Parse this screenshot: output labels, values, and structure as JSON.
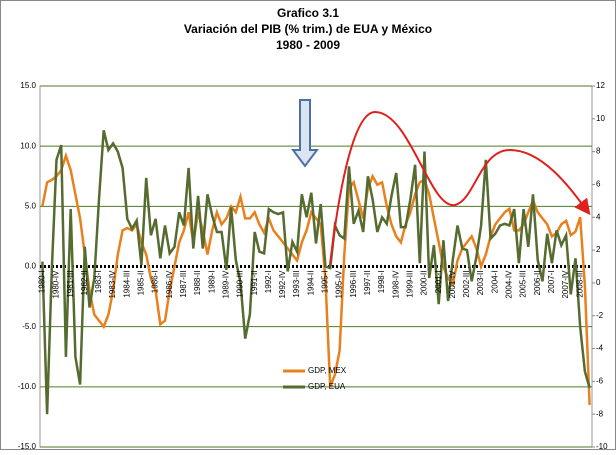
{
  "chart_data": {
    "type": "line",
    "title": [
      "Grafico 3.1",
      "Variación del PIB (% trim.) de EUA y México",
      "1980 - 2009"
    ],
    "categories": [
      "1980-I",
      null,
      null,
      "1980-IV",
      null,
      null,
      "1981-III",
      null,
      null,
      "1982-II",
      null,
      null,
      "1983-I",
      null,
      null,
      "1983-IV",
      null,
      null,
      "1984-III",
      null,
      null,
      "1985-II",
      null,
      null,
      "1986-I",
      null,
      null,
      "1986-IV",
      null,
      null,
      "1987-III",
      null,
      null,
      "1988-II",
      null,
      null,
      "1989-I",
      null,
      null,
      "1989-IV",
      null,
      null,
      "1990-III",
      null,
      null,
      "1991-II",
      null,
      null,
      "1992-I",
      null,
      null,
      "1992-IV",
      null,
      null,
      "1993-III",
      null,
      null,
      "1994-II",
      null,
      null,
      "1995-I",
      null,
      null,
      "1995-IV",
      null,
      null,
      "1996-III",
      null,
      null,
      "1997-II",
      null,
      null,
      "1998-I",
      null,
      null,
      "1998-IV",
      null,
      null,
      "1999-III",
      null,
      null,
      "2000-II",
      null,
      null,
      "2001-I",
      null,
      null,
      "2001-IV",
      null,
      null,
      "2002-III",
      null,
      null,
      "2003-II",
      null,
      null,
      "2004-I",
      null,
      null,
      "2004-IV",
      null,
      null,
      "2005-III",
      null,
      null,
      "2006-II",
      null,
      null,
      "2007-I",
      null,
      null,
      "2007-IV",
      null,
      null,
      "2008-III",
      null,
      null
    ],
    "series": [
      {
        "name": "GDP, MEX",
        "color": "#e8801e",
        "axis": "y",
        "values": [
          5,
          7,
          7.2,
          7.5,
          8,
          9.2,
          8,
          6,
          4,
          1,
          -2,
          -4,
          -4.5,
          -5,
          -4,
          -2,
          1,
          3,
          3.2,
          3,
          3.5,
          2,
          1,
          -1,
          -2,
          -4.8,
          -4.5,
          -2,
          0,
          2,
          3,
          4.5,
          2,
          4.5,
          3,
          1,
          3,
          4.5,
          3.5,
          4,
          5,
          4.5,
          5.8,
          4,
          4,
          4.5,
          3.5,
          2.8,
          4,
          3,
          2.5,
          2,
          1.5,
          1,
          0.5,
          2,
          3,
          4.5,
          4,
          3.5,
          -1,
          -10,
          -9,
          -7,
          1,
          6.5,
          7,
          5.5,
          4,
          6.5,
          7.5,
          6.8,
          7,
          5,
          3.5,
          2.5,
          2,
          3.5,
          4.5,
          6,
          7,
          7.2,
          6,
          4,
          2,
          0,
          -1,
          -1.5,
          0.5,
          1.5,
          2,
          2.5,
          1.5,
          0,
          1,
          2.5,
          3.5,
          4,
          4.5,
          4.8,
          3,
          3,
          3.5,
          4.5,
          5.5,
          4.5,
          4,
          3.5,
          2.5,
          2.8,
          3.5,
          3.8,
          2.6,
          2.9,
          4.1,
          -1.6,
          -11.5
        ]
      },
      {
        "name": "GDP, EUA",
        "color": "#556b2f",
        "axis": "y2",
        "values": [
          1.3,
          -8,
          0.8,
          7.5,
          8.4,
          -4.5,
          4.5,
          -4.5,
          -6.2,
          2.2,
          -1.5,
          0.3,
          5.1,
          9.3,
          8.1,
          8.5,
          8,
          7,
          3.9,
          3.3,
          3.8,
          1.1,
          6.4,
          2.9,
          3.9,
          1.5,
          3.5,
          1.8,
          2.2,
          4.3,
          3.5,
          7,
          2.1,
          5.3,
          2.1,
          5.4,
          4.1,
          3.1,
          3.1,
          0.8,
          4.6,
          1.4,
          0,
          -3.4,
          -1.9,
          3.1,
          1.9,
          1.8,
          4.5,
          4.3,
          4.2,
          4.3,
          0.7,
          2.5,
          1.9,
          5.4,
          4,
          5.5,
          2.4,
          4.8,
          1,
          0.9,
          3.5,
          2.9,
          2.7,
          7.1,
          3.6,
          4.4,
          3.1,
          6.5,
          5.1,
          3.1,
          4,
          3.6,
          5.3,
          6.7,
          3.4,
          3.4,
          5.1,
          7.2,
          1.2,
          8,
          0.3,
          2.3,
          -1.3,
          2.6,
          -1.1,
          1.4,
          3.5,
          2.1,
          2,
          0.1,
          1.6,
          3.5,
          7.5,
          2.7,
          3,
          3.5,
          3.6,
          3.5,
          4.5,
          1.2,
          4.5,
          2.2,
          5.4,
          1.4,
          0.1,
          3,
          1.2,
          3.2,
          2.3,
          2.9,
          -0.7,
          1.5,
          -2.7,
          -5.4,
          -6.4
        ]
      }
    ],
    "ylim": [
      -15,
      15
    ],
    "yticks": [
      {
        "value": -15,
        "label": "-15.0"
      },
      {
        "value": -10,
        "label": "-10.0"
      },
      {
        "value": -5,
        "label": "-5.0"
      },
      {
        "value": 0,
        "label": "0.0"
      },
      {
        "value": 5,
        "label": "5.0"
      },
      {
        "value": 10,
        "label": "10.0"
      },
      {
        "value": 15,
        "label": "15.0"
      }
    ],
    "y2lim": [
      -10,
      12
    ],
    "y2ticks": [
      -10,
      -8,
      -6,
      -4,
      -2,
      0,
      2,
      4,
      6,
      8,
      10,
      12
    ],
    "grid": true,
    "legend": "bottom"
  }
}
